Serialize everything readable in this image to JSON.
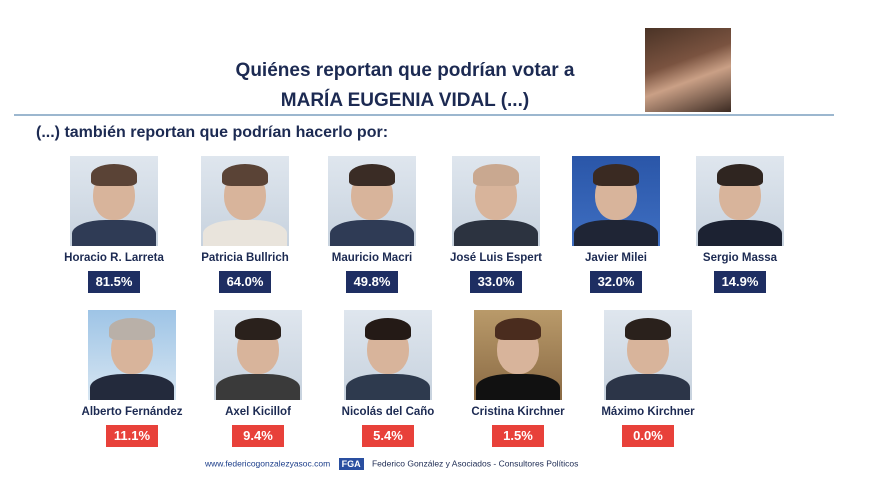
{
  "header": {
    "title_line1": "Quiénes reportan que podrían votar a",
    "title_line2": "MARÍA EUGENIA VIDAL (...)",
    "subtitle": "(...) también reportan que podrían hacerlo por:"
  },
  "chart_data": {
    "type": "table",
    "unit": "%",
    "rows": [
      {
        "name": "Horacio R. Larreta",
        "value": 81.5,
        "label": "81.5%",
        "color": "#1e2e62"
      },
      {
        "name": "Patricia Bullrich",
        "value": 64.0,
        "label": "64.0%",
        "color": "#1e2e62"
      },
      {
        "name": "Mauricio Macri",
        "value": 49.8,
        "label": "49.8%",
        "color": "#1e2e62"
      },
      {
        "name": "José Luis Espert",
        "value": 33.0,
        "label": "33.0%",
        "color": "#1e2e62"
      },
      {
        "name": "Javier Milei",
        "value": 32.0,
        "label": "32.0%",
        "color": "#1e2e62"
      },
      {
        "name": "Sergio Massa",
        "value": 14.9,
        "label": "14.9%",
        "color": "#1e2e62"
      },
      {
        "name": "Alberto Fernández",
        "value": 11.1,
        "label": "11.1%",
        "color": "#e8413a"
      },
      {
        "name": "Axel Kicillof",
        "value": 9.4,
        "label": "9.4%",
        "color": "#e8413a"
      },
      {
        "name": "Nicolás del Caño",
        "value": 5.4,
        "label": "5.4%",
        "color": "#e8413a"
      },
      {
        "name": "Cristina Kirchner",
        "value": 1.5,
        "label": "1.5%",
        "color": "#e8413a"
      },
      {
        "name": "Máximo Kirchner",
        "value": 0.0,
        "label": "0.0%",
        "color": "#e8413a"
      }
    ]
  },
  "footer": {
    "url": "www.federicogonzalezyasoc.com",
    "logo": "FGA",
    "org": "Federico González y Asociados - Consultores Políticos"
  }
}
